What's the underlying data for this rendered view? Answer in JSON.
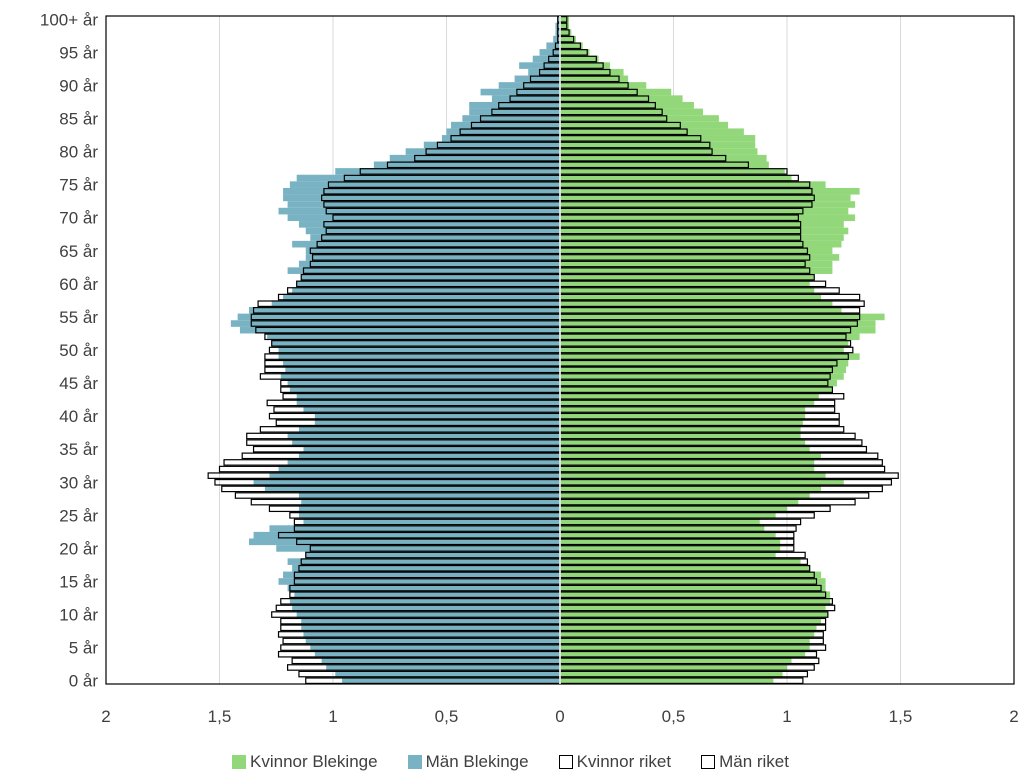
{
  "chart_data": {
    "type": "bar",
    "orientation": "horizontal-population-pyramid",
    "xlim": [
      -2,
      2
    ],
    "x_ticks": [
      -2,
      -1.5,
      -1,
      -0.5,
      0,
      0.5,
      1,
      1.5,
      2
    ],
    "x_tick_labels": [
      "2",
      "1,5",
      "1",
      "0,5",
      "0",
      "0,5",
      "1",
      "1,5",
      "2"
    ],
    "grid": "vertical",
    "legend_position": "bottom",
    "y_tick_labels": [
      "0 år",
      "5 år",
      "10 år",
      "15 år",
      "20 år",
      "25 år",
      "30 år",
      "35 år",
      "40 år",
      "45 år",
      "50 år",
      "55 år",
      "60 år",
      "65 år",
      "70 år",
      "75 år",
      "80 år",
      "85 år",
      "90 år",
      "95 år",
      "100+ år"
    ],
    "categories": [
      "0",
      "1",
      "2",
      "3",
      "4",
      "5",
      "6",
      "7",
      "8",
      "9",
      "10",
      "11",
      "12",
      "13",
      "14",
      "15",
      "16",
      "17",
      "18",
      "19",
      "20",
      "21",
      "22",
      "23",
      "24",
      "25",
      "26",
      "27",
      "28",
      "29",
      "30",
      "31",
      "32",
      "33",
      "34",
      "35",
      "36",
      "37",
      "38",
      "39",
      "40",
      "41",
      "42",
      "43",
      "44",
      "45",
      "46",
      "47",
      "48",
      "49",
      "50",
      "51",
      "52",
      "53",
      "54",
      "55",
      "56",
      "57",
      "58",
      "59",
      "60",
      "61",
      "62",
      "63",
      "64",
      "65",
      "66",
      "67",
      "68",
      "69",
      "70",
      "71",
      "72",
      "73",
      "74",
      "75",
      "76",
      "77",
      "78",
      "79",
      "80",
      "81",
      "82",
      "83",
      "84",
      "85",
      "86",
      "87",
      "88",
      "89",
      "90",
      "91",
      "92",
      "93",
      "94",
      "95",
      "96",
      "97",
      "98",
      "99",
      "100+"
    ],
    "series": [
      {
        "name": "Kvinnor Blekinge",
        "color": "#92d779",
        "style": "fill",
        "values": [
          0.94,
          0.98,
          1.0,
          1.02,
          1.08,
          1.1,
          1.1,
          1.12,
          1.13,
          1.15,
          1.18,
          1.17,
          1.19,
          1.19,
          1.17,
          1.17,
          1.15,
          1.1,
          1.06,
          0.95,
          0.97,
          0.97,
          0.95,
          0.9,
          0.88,
          0.95,
          1.0,
          1.05,
          1.1,
          1.15,
          1.25,
          1.17,
          1.12,
          1.12,
          1.15,
          1.1,
          1.08,
          1.06,
          1.06,
          1.07,
          1.08,
          1.08,
          1.12,
          1.14,
          1.2,
          1.22,
          1.25,
          1.26,
          1.27,
          1.32,
          1.25,
          1.27,
          1.32,
          1.39,
          1.39,
          1.43,
          1.24,
          1.2,
          1.15,
          1.12,
          1.1,
          1.12,
          1.2,
          1.2,
          1.23,
          1.2,
          1.24,
          1.25,
          1.27,
          1.25,
          1.3,
          1.27,
          1.3,
          1.28,
          1.32,
          1.17,
          1.02,
          0.99,
          0.92,
          0.91,
          0.87,
          0.86,
          0.86,
          0.81,
          0.74,
          0.7,
          0.63,
          0.59,
          0.54,
          0.49,
          0.38,
          0.3,
          0.28,
          0.22,
          0.17,
          0.13,
          0.1,
          0.07,
          0.05,
          0.04,
          0.04
        ]
      },
      {
        "name": "Män Blekinge",
        "color": "#79b3c3",
        "style": "fill",
        "values": [
          0.96,
          0.99,
          1.03,
          1.05,
          1.08,
          1.1,
          1.12,
          1.13,
          1.14,
          1.14,
          1.16,
          1.18,
          1.19,
          1.17,
          1.2,
          1.24,
          1.22,
          1.18,
          1.2,
          1.12,
          1.25,
          1.37,
          1.35,
          1.28,
          1.13,
          1.15,
          1.15,
          1.14,
          1.15,
          1.3,
          1.35,
          1.28,
          1.24,
          1.2,
          1.15,
          1.13,
          1.18,
          1.2,
          1.15,
          1.08,
          1.08,
          1.13,
          1.16,
          1.16,
          1.19,
          1.2,
          1.23,
          1.21,
          1.22,
          1.24,
          1.24,
          1.27,
          1.29,
          1.41,
          1.45,
          1.42,
          1.37,
          1.27,
          1.22,
          1.18,
          1.16,
          1.14,
          1.2,
          1.15,
          1.12,
          1.12,
          1.18,
          1.1,
          1.12,
          1.15,
          1.2,
          1.24,
          1.2,
          1.22,
          1.22,
          1.19,
          1.16,
          0.99,
          0.82,
          0.75,
          0.68,
          0.6,
          0.52,
          0.5,
          0.48,
          0.43,
          0.4,
          0.4,
          0.3,
          0.35,
          0.27,
          0.2,
          0.14,
          0.18,
          0.12,
          0.09,
          0.06,
          0.03,
          0.02,
          0.02,
          0.01
        ]
      },
      {
        "name": "Kvinnor riket",
        "color": "#000000",
        "style": "outline",
        "values": [
          1.07,
          1.09,
          1.12,
          1.14,
          1.13,
          1.17,
          1.16,
          1.16,
          1.17,
          1.17,
          1.18,
          1.21,
          1.2,
          1.17,
          1.15,
          1.13,
          1.12,
          1.1,
          1.09,
          1.08,
          1.03,
          1.03,
          1.03,
          1.04,
          1.06,
          1.12,
          1.19,
          1.3,
          1.36,
          1.42,
          1.46,
          1.49,
          1.43,
          1.42,
          1.4,
          1.35,
          1.33,
          1.3,
          1.25,
          1.23,
          1.23,
          1.21,
          1.21,
          1.25,
          1.2,
          1.18,
          1.19,
          1.2,
          1.22,
          1.27,
          1.29,
          1.28,
          1.26,
          1.28,
          1.31,
          1.32,
          1.32,
          1.34,
          1.32,
          1.23,
          1.17,
          1.12,
          1.1,
          1.08,
          1.1,
          1.09,
          1.07,
          1.06,
          1.06,
          1.06,
          1.05,
          1.07,
          1.11,
          1.12,
          1.11,
          1.1,
          1.05,
          1.0,
          0.83,
          0.73,
          0.67,
          0.66,
          0.62,
          0.56,
          0.53,
          0.47,
          0.45,
          0.42,
          0.39,
          0.34,
          0.3,
          0.26,
          0.22,
          0.19,
          0.16,
          0.12,
          0.09,
          0.06,
          0.04,
          0.03,
          0.03
        ]
      },
      {
        "name": "Män riket",
        "color": "#000000",
        "style": "outline",
        "values": [
          1.12,
          1.15,
          1.2,
          1.18,
          1.24,
          1.23,
          1.22,
          1.24,
          1.23,
          1.23,
          1.27,
          1.25,
          1.23,
          1.19,
          1.19,
          1.17,
          1.17,
          1.15,
          1.14,
          1.12,
          1.1,
          1.16,
          1.24,
          1.17,
          1.17,
          1.19,
          1.28,
          1.36,
          1.43,
          1.49,
          1.52,
          1.55,
          1.5,
          1.48,
          1.4,
          1.35,
          1.38,
          1.38,
          1.32,
          1.25,
          1.28,
          1.26,
          1.29,
          1.22,
          1.23,
          1.23,
          1.32,
          1.3,
          1.3,
          1.3,
          1.28,
          1.27,
          1.3,
          1.34,
          1.36,
          1.36,
          1.35,
          1.33,
          1.24,
          1.2,
          1.16,
          1.14,
          1.13,
          1.1,
          1.09,
          1.1,
          1.07,
          1.05,
          1.03,
          1.04,
          1.0,
          1.03,
          1.04,
          1.05,
          1.04,
          1.02,
          0.95,
          0.88,
          0.76,
          0.64,
          0.59,
          0.54,
          0.48,
          0.44,
          0.39,
          0.35,
          0.3,
          0.27,
          0.22,
          0.19,
          0.16,
          0.13,
          0.09,
          0.07,
          0.05,
          0.03,
          0.02,
          0.01,
          0.01,
          0.01,
          0.01
        ]
      }
    ]
  }
}
